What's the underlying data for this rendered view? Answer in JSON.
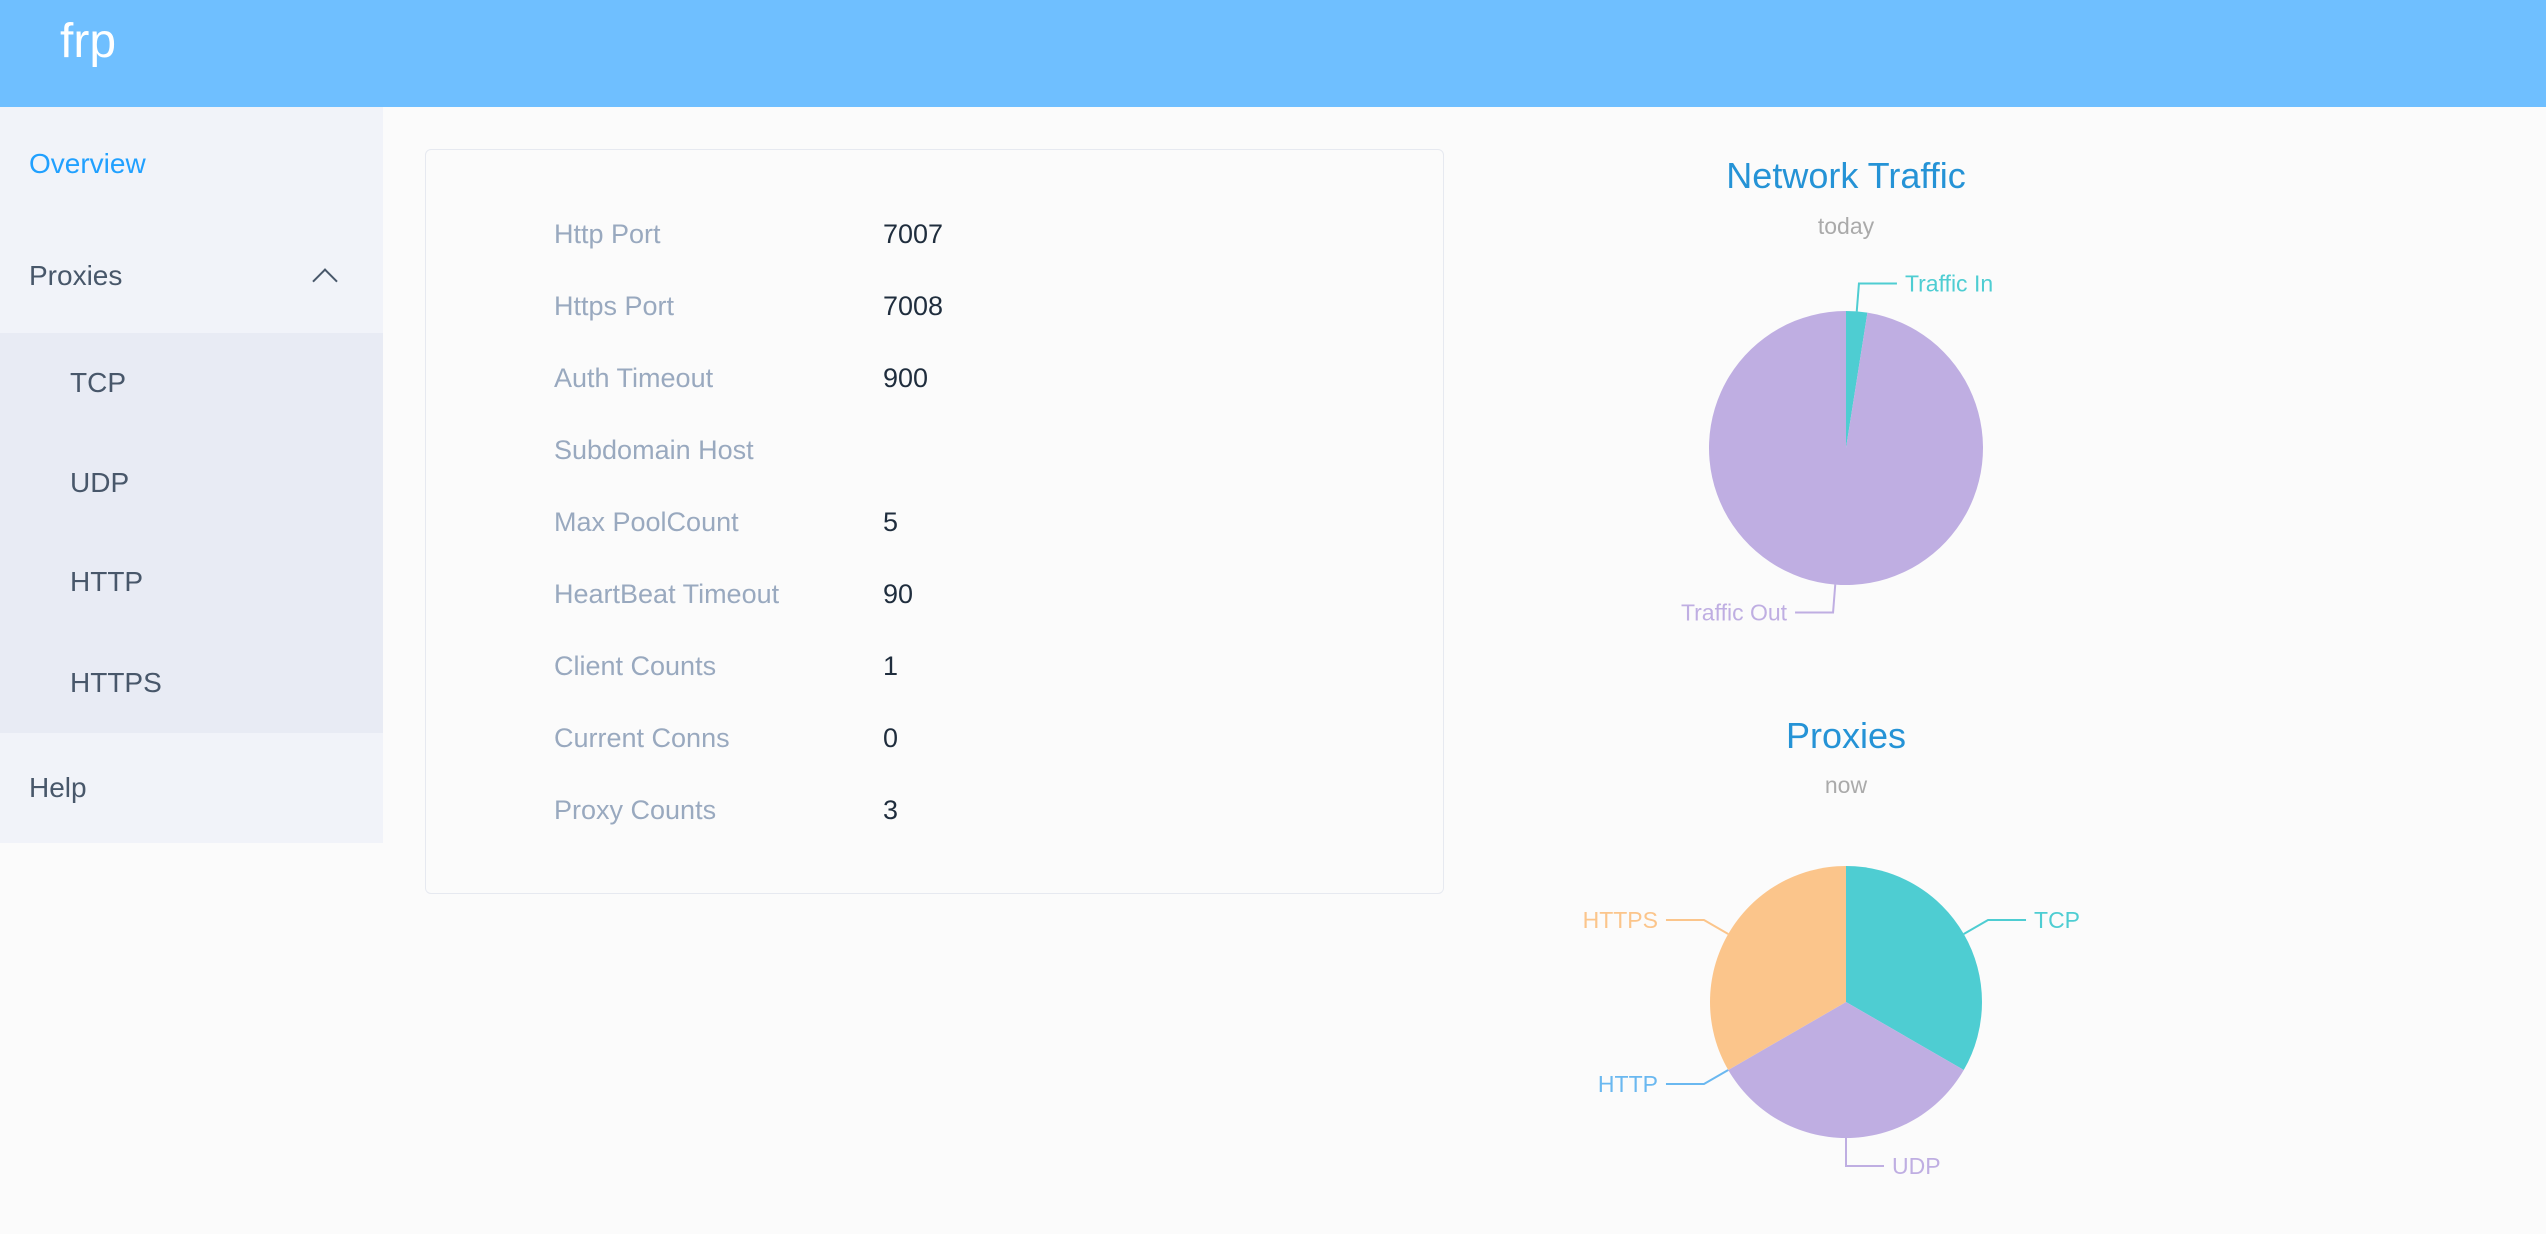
{
  "header": {
    "title": "frp"
  },
  "sidebar": {
    "overview": "Overview",
    "proxies": "Proxies",
    "proxy_items": [
      "TCP",
      "UDP",
      "HTTP",
      "HTTPS"
    ],
    "help": "Help"
  },
  "server_info": [
    {
      "label": "Http Port",
      "value": "7007"
    },
    {
      "label": "Https Port",
      "value": "7008"
    },
    {
      "label": "Auth Timeout",
      "value": "900"
    },
    {
      "label": "Subdomain Host",
      "value": ""
    },
    {
      "label": "Max PoolCount",
      "value": "5"
    },
    {
      "label": "HeartBeat Timeout",
      "value": "90"
    },
    {
      "label": "Client Counts",
      "value": "1"
    },
    {
      "label": "Current Conns",
      "value": "0"
    },
    {
      "label": "Proxy Counts",
      "value": "3"
    }
  ],
  "colors": {
    "accent": "#20a0ff",
    "header": "#6fbfff",
    "title": "#2593d6"
  },
  "chart_data": [
    {
      "type": "pie",
      "title": "Network Traffic",
      "subtitle": "today",
      "slices": [
        {
          "name": "Traffic In",
          "value": 2.5,
          "color": "#4ecdd2"
        },
        {
          "name": "Traffic Out",
          "value": 97.5,
          "color": "#bfaee2"
        }
      ]
    },
    {
      "type": "pie",
      "title": "Proxies",
      "subtitle": "now",
      "slices": [
        {
          "name": "TCP",
          "value": 1,
          "color": "#4ecdd2"
        },
        {
          "name": "UDP",
          "value": 1,
          "color": "#bfaee2"
        },
        {
          "name": "HTTP",
          "value": 0,
          "color": "#6ab8f0"
        },
        {
          "name": "HTTPS",
          "value": 1,
          "color": "#fbc58b"
        }
      ]
    }
  ]
}
